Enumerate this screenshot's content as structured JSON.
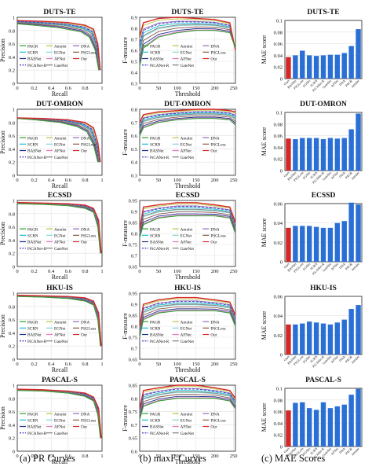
{
  "captions": [
    "(a) PR Curves",
    "(b) maxF Curves",
    "(c) MAE Scores"
  ],
  "legend_methods": [
    "PAGR",
    "Amulet",
    "DNA",
    "SCRN",
    "EGNet",
    "PSGLoss",
    "BASNet",
    "AFNet",
    "Our",
    "PiCANet-R",
    "GateNet"
  ],
  "colors": {
    "PAGR": "#2ca02c",
    "Amulet": "#b7c840",
    "DNA": "#9467bd",
    "SCRN": "#17becf",
    "EGNet": "#7fd8d8",
    "PSGLoss": "#8c564b",
    "BASNet": "#1f2f8f",
    "AFNet": "#e377c2",
    "Our": "#d62728",
    "PiCANet-R": "#3a3ac8",
    "GateNet": "#7f7f7f",
    "bar": "#2a6fd6",
    "bar_ours": "#d62728"
  },
  "chart_data": [
    {
      "type": "line",
      "dataset": "DUTS-TE",
      "title": "DUTS-TE",
      "xlabel": "Recall",
      "ylabel": "Precision",
      "xlim": [
        0,
        1
      ],
      "ylim": [
        0,
        1
      ],
      "xticks": [
        0,
        0.2,
        0.4,
        0.6,
        0.8,
        1
      ],
      "yticks": [
        0,
        0.2,
        0.4,
        0.6,
        0.8,
        1
      ],
      "series": [
        {
          "name": "PAGR",
          "x": [
            0,
            0.2,
            0.5,
            0.75,
            0.85,
            0.92,
            0.96
          ],
          "y": [
            0.9,
            0.88,
            0.84,
            0.78,
            0.7,
            0.5,
            0.2
          ]
        },
        {
          "name": "Our",
          "x": [
            0,
            0.3,
            0.6,
            0.8,
            0.9,
            0.95,
            0.98
          ],
          "y": [
            0.95,
            0.94,
            0.92,
            0.88,
            0.82,
            0.6,
            0.2
          ]
        }
      ]
    },
    {
      "type": "line",
      "dataset": "DUTS-TE",
      "title": "DUTS-TE",
      "xlabel": "Threshold",
      "ylabel": "F-measure",
      "xlim": [
        0,
        255
      ],
      "ylim": [
        0.3,
        0.9
      ],
      "xticks": [
        0,
        50,
        100,
        150,
        200,
        250
      ],
      "yticks": [
        0.3,
        0.4,
        0.5,
        0.6,
        0.7,
        0.8,
        0.9
      ],
      "series": [
        {
          "name": "Our",
          "x": [
            0,
            10,
            50,
            100,
            150,
            200,
            240,
            255
          ],
          "y": [
            0.73,
            0.85,
            0.89,
            0.9,
            0.89,
            0.88,
            0.85,
            0.6
          ]
        },
        {
          "name": "PAGR",
          "x": [
            0,
            10,
            50,
            100,
            150,
            200,
            240,
            255
          ],
          "y": [
            0.45,
            0.62,
            0.72,
            0.76,
            0.78,
            0.78,
            0.76,
            0.62
          ]
        }
      ]
    },
    {
      "type": "bar",
      "dataset": "DUTS-TE",
      "title": "DUTS-TE",
      "xlabel": "",
      "ylabel": "MAE score",
      "categories": [
        "Ours",
        "BASNet",
        "PSGLoss",
        "EGNet",
        "SCRN",
        "PiCANet-R",
        "GateNet",
        "AFNet",
        "DNA",
        "PAGR",
        "Amulet"
      ],
      "values": [
        0.037,
        0.04,
        0.048,
        0.04,
        0.039,
        0.04,
        0.041,
        0.041,
        0.044,
        0.056,
        0.085
      ],
      "ylim": [
        0,
        0.1
      ],
      "yticks": [
        0,
        0.02,
        0.04,
        0.06,
        0.08,
        0.1
      ]
    },
    {
      "type": "line",
      "dataset": "DUT-OMRON",
      "title": "DUT-OMRON",
      "xlabel": "Recall",
      "ylabel": "Precision",
      "xlim": [
        0,
        1
      ],
      "ylim": [
        0,
        1
      ],
      "xticks": [
        0,
        0.2,
        0.4,
        0.6,
        0.8,
        1
      ],
      "yticks": [
        0,
        0.2,
        0.4,
        0.6,
        0.8,
        1
      ],
      "series": [
        {
          "name": "PAGR",
          "x": [
            0,
            0.2,
            0.5,
            0.7,
            0.82,
            0.9,
            0.95
          ],
          "y": [
            0.86,
            0.84,
            0.8,
            0.74,
            0.66,
            0.46,
            0.2
          ]
        },
        {
          "name": "Our",
          "x": [
            0,
            0.3,
            0.6,
            0.8,
            0.9,
            0.95,
            0.98
          ],
          "y": [
            0.87,
            0.86,
            0.84,
            0.8,
            0.72,
            0.5,
            0.2
          ]
        }
      ]
    },
    {
      "type": "line",
      "dataset": "DUT-OMRON",
      "title": "DUT-OMRON",
      "xlabel": "Threshold",
      "ylabel": "F-measure",
      "xlim": [
        0,
        255
      ],
      "ylim": [
        0.3,
        0.8
      ],
      "xticks": [
        0,
        50,
        100,
        150,
        200,
        250
      ],
      "yticks": [
        0.3,
        0.4,
        0.5,
        0.6,
        0.7,
        0.8
      ],
      "series": [
        {
          "name": "Our",
          "x": [
            0,
            10,
            50,
            100,
            150,
            200,
            240,
            255
          ],
          "y": [
            0.7,
            0.76,
            0.78,
            0.79,
            0.8,
            0.8,
            0.79,
            0.78
          ]
        },
        {
          "name": "PAGR",
          "x": [
            0,
            10,
            50,
            100,
            150,
            200,
            240,
            255
          ],
          "y": [
            0.6,
            0.66,
            0.7,
            0.72,
            0.73,
            0.73,
            0.72,
            0.68
          ]
        }
      ]
    },
    {
      "type": "bar",
      "dataset": "DUT-OMRON",
      "title": "DUT-OMRON",
      "xlabel": "",
      "ylabel": "MAE score",
      "categories": [
        "Ours",
        "BASNet",
        "PSGLoss",
        "EGNet",
        "SCRN",
        "PiCANet-R",
        "GateNet",
        "AFNet",
        "DNA",
        "PAGR",
        "Amulet"
      ],
      "values": [
        0.055,
        0.054,
        0.056,
        0.056,
        0.056,
        0.054,
        0.056,
        0.055,
        0.056,
        0.071,
        0.098
      ],
      "ylim": [
        0,
        0.1
      ],
      "yticks": [
        0,
        0.02,
        0.04,
        0.06,
        0.08,
        0.1
      ]
    },
    {
      "type": "line",
      "dataset": "ECSSD",
      "title": "ECSSD",
      "xlabel": "Recall",
      "ylabel": "Precision",
      "xlim": [
        0,
        1
      ],
      "ylim": [
        0,
        1
      ],
      "xticks": [
        0,
        0.2,
        0.4,
        0.6,
        0.8,
        1
      ],
      "yticks": [
        0,
        0.2,
        0.4,
        0.6,
        0.8,
        1
      ],
      "series": [
        {
          "name": "PAGR",
          "x": [
            0,
            0.3,
            0.6,
            0.8,
            0.9,
            0.95,
            0.98
          ],
          "y": [
            0.95,
            0.94,
            0.92,
            0.88,
            0.82,
            0.6,
            0.2
          ]
        },
        {
          "name": "Our",
          "x": [
            0,
            0.3,
            0.6,
            0.8,
            0.9,
            0.96,
            0.99
          ],
          "y": [
            0.97,
            0.96,
            0.95,
            0.93,
            0.88,
            0.7,
            0.2
          ]
        }
      ]
    },
    {
      "type": "line",
      "dataset": "ECSSD",
      "title": "ECSSD",
      "xlabel": "Threshold",
      "ylabel": "F-measure",
      "xlim": [
        0,
        255
      ],
      "ylim": [
        0.65,
        0.95
      ],
      "xticks": [
        0,
        50,
        100,
        150,
        200,
        250
      ],
      "yticks": [
        0.65,
        0.7,
        0.75,
        0.8,
        0.85,
        0.9,
        0.95
      ],
      "series": [
        {
          "name": "Our",
          "x": [
            0,
            10,
            50,
            100,
            150,
            200,
            240,
            255
          ],
          "y": [
            0.82,
            0.92,
            0.93,
            0.94,
            0.94,
            0.93,
            0.92,
            0.85
          ]
        },
        {
          "name": "PAGR",
          "x": [
            0,
            10,
            50,
            100,
            150,
            200,
            240,
            255
          ],
          "y": [
            0.78,
            0.84,
            0.87,
            0.88,
            0.88,
            0.88,
            0.87,
            0.8
          ]
        }
      ]
    },
    {
      "type": "bar",
      "dataset": "ECSSD",
      "title": "ECSSD",
      "xlabel": "",
      "ylabel": "MAE score",
      "categories": [
        "Ours",
        "BASNet",
        "PSGLoss",
        "EGNet",
        "SCRN",
        "PiCANet-R",
        "GateNet",
        "AFNet",
        "DNA",
        "PAGR",
        "Amulet"
      ],
      "values": [
        0.035,
        0.037,
        0.037,
        0.037,
        0.036,
        0.035,
        0.035,
        0.04,
        0.042,
        0.061,
        0.059
      ],
      "ylim": [
        0,
        0.06
      ],
      "yticks": [
        0,
        0.02,
        0.04,
        0.06
      ]
    },
    {
      "type": "line",
      "dataset": "HKU-IS",
      "title": "HKU-IS",
      "xlabel": "Recall",
      "ylabel": "Precision",
      "xlim": [
        0,
        1
      ],
      "ylim": [
        0,
        1
      ],
      "xticks": [
        0,
        0.2,
        0.4,
        0.6,
        0.8,
        1
      ],
      "yticks": [
        0,
        0.2,
        0.4,
        0.6,
        0.8,
        1
      ],
      "series": [
        {
          "name": "PAGR",
          "x": [
            0,
            0.3,
            0.6,
            0.8,
            0.9,
            0.95,
            0.98
          ],
          "y": [
            0.95,
            0.94,
            0.92,
            0.88,
            0.82,
            0.6,
            0.2
          ]
        },
        {
          "name": "Our",
          "x": [
            0,
            0.3,
            0.6,
            0.8,
            0.9,
            0.96,
            0.99
          ],
          "y": [
            0.97,
            0.96,
            0.95,
            0.93,
            0.88,
            0.7,
            0.2
          ]
        }
      ]
    },
    {
      "type": "line",
      "dataset": "HKU-IS",
      "title": "HKU-IS",
      "xlabel": "Threshold",
      "ylabel": "F-measure",
      "xlim": [
        0,
        255
      ],
      "ylim": [
        0.65,
        0.95
      ],
      "xticks": [
        0,
        50,
        100,
        150,
        200,
        250
      ],
      "yticks": [
        0.65,
        0.7,
        0.75,
        0.8,
        0.85,
        0.9,
        0.95
      ],
      "series": [
        {
          "name": "Our",
          "x": [
            0,
            10,
            50,
            100,
            150,
            200,
            240,
            255
          ],
          "y": [
            0.8,
            0.9,
            0.92,
            0.93,
            0.93,
            0.92,
            0.91,
            0.85
          ]
        },
        {
          "name": "PAGR",
          "x": [
            0,
            10,
            50,
            100,
            150,
            200,
            240,
            255
          ],
          "y": [
            0.75,
            0.83,
            0.86,
            0.87,
            0.87,
            0.87,
            0.86,
            0.8
          ]
        }
      ]
    },
    {
      "type": "bar",
      "dataset": "HKU-IS",
      "title": "HKU-IS",
      "xlabel": "",
      "ylabel": "MAE score",
      "categories": [
        "Ours",
        "BASNet",
        "PSGLoss",
        "EGNet",
        "SCRN",
        "PiCANet-R",
        "GateNet",
        "AFNet",
        "DNA",
        "PAGR",
        "Amulet"
      ],
      "values": [
        0.031,
        0.031,
        0.032,
        0.034,
        0.033,
        0.032,
        0.031,
        0.033,
        0.036,
        0.047,
        0.051
      ],
      "ylim": [
        0,
        0.06
      ],
      "yticks": [
        0,
        0.02,
        0.04,
        0.06
      ]
    },
    {
      "type": "line",
      "dataset": "PASCAL-S",
      "title": "PASCAL-S",
      "xlabel": "Recall",
      "ylabel": "Precision",
      "xlim": [
        0,
        1
      ],
      "ylim": [
        0,
        1
      ],
      "xticks": [
        0,
        0.2,
        0.4,
        0.6,
        0.8,
        1
      ],
      "yticks": [
        0,
        0.2,
        0.4,
        0.6,
        0.8,
        1
      ],
      "series": [
        {
          "name": "PAGR",
          "x": [
            0,
            0.3,
            0.6,
            0.8,
            0.9,
            0.95,
            0.98
          ],
          "y": [
            0.92,
            0.91,
            0.88,
            0.83,
            0.76,
            0.55,
            0.2
          ]
        },
        {
          "name": "Our",
          "x": [
            0,
            0.3,
            0.6,
            0.8,
            0.9,
            0.96,
            0.99
          ],
          "y": [
            0.94,
            0.93,
            0.91,
            0.88,
            0.82,
            0.65,
            0.2
          ]
        }
      ]
    },
    {
      "type": "line",
      "dataset": "PASCAL-S",
      "title": "PASCAL-S",
      "xlabel": "Threshold",
      "ylabel": "F-measure",
      "xlim": [
        0,
        255
      ],
      "ylim": [
        0.6,
        0.85
      ],
      "xticks": [
        0,
        50,
        100,
        150,
        200,
        250
      ],
      "yticks": [
        0.6,
        0.65,
        0.7,
        0.75,
        0.8,
        0.85
      ],
      "series": [
        {
          "name": "Our",
          "x": [
            0,
            10,
            50,
            100,
            150,
            200,
            240,
            255
          ],
          "y": [
            0.76,
            0.83,
            0.84,
            0.85,
            0.85,
            0.84,
            0.83,
            0.8
          ]
        },
        {
          "name": "PAGR",
          "x": [
            0,
            10,
            50,
            100,
            150,
            200,
            240,
            255
          ],
          "y": [
            0.72,
            0.77,
            0.79,
            0.8,
            0.8,
            0.8,
            0.79,
            0.76
          ]
        }
      ]
    },
    {
      "type": "bar",
      "dataset": "PASCAL-S",
      "title": "PASCAL-S",
      "xlabel": "",
      "ylabel": "MAE score",
      "categories": [
        "Ours",
        "BASNet",
        "PSGLoss",
        "EGNet",
        "SCRN",
        "PiCANet-R",
        "GateNet",
        "AFNet",
        "DNA",
        "PAGR",
        "Amulet"
      ],
      "values": [
        0.062,
        0.075,
        0.076,
        0.066,
        0.063,
        0.076,
        0.066,
        0.069,
        0.072,
        0.089,
        0.099
      ],
      "ylim": [
        0,
        0.1
      ],
      "yticks": [
        0,
        0.02,
        0.04,
        0.06,
        0.08,
        0.1
      ]
    }
  ]
}
